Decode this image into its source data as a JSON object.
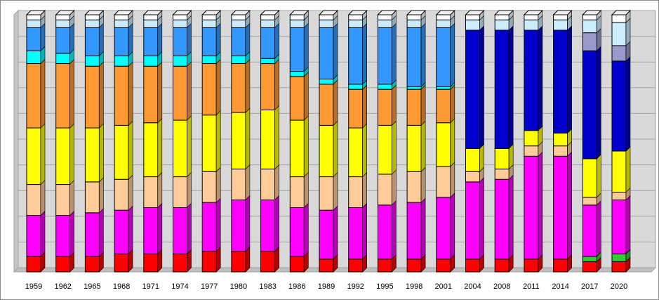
{
  "canvas": {
    "background": "#FFFFFF",
    "border_color": "#8C8C8C",
    "wall_color": "#D9D9D9",
    "side_wall_color": "#C6C6C6",
    "floor_color": "#BFBFBF",
    "gridline_color": "#A3A3A3",
    "bar_outline_color": "#000000",
    "label_color": "#000000"
  },
  "chart_data": {
    "type": "bar",
    "subtype": "stacked-percent-3d",
    "title": "",
    "xlabel": "",
    "ylabel": "",
    "legend": "none",
    "grid": true,
    "ylim": [
      0,
      100
    ],
    "categories": [
      "1959",
      "1962",
      "1965",
      "1968",
      "1971",
      "1974",
      "1977",
      "1980",
      "1983",
      "1986",
      "1989",
      "1992",
      "1995",
      "1998",
      "2001",
      "2004",
      "2008",
      "2011",
      "2014",
      "2017",
      "2020"
    ],
    "series": [
      {
        "name": "segment-red",
        "color": "#FF0000",
        "values": [
          6,
          6,
          6,
          7,
          7,
          7,
          8,
          8,
          8,
          6,
          5,
          5,
          5,
          5,
          5,
          5,
          5,
          5,
          5,
          4,
          4
        ]
      },
      {
        "name": "segment-green",
        "color": "#33CC33",
        "values": [
          0,
          0,
          0,
          0,
          0,
          0,
          0,
          0,
          0,
          0,
          0,
          0,
          0,
          0,
          0,
          0,
          0,
          0,
          0,
          2,
          3
        ]
      },
      {
        "name": "segment-magenta",
        "color": "#FF00FF",
        "values": [
          16,
          16,
          17,
          17,
          18,
          18,
          19,
          20,
          20,
          19,
          19,
          20,
          21,
          22,
          24,
          30,
          31,
          40,
          40,
          20,
          21
        ]
      },
      {
        "name": "segment-peach",
        "color": "#FFCC99",
        "values": [
          12,
          12,
          12,
          12,
          12,
          12,
          12,
          12,
          12,
          12,
          13,
          12,
          12,
          12,
          12,
          4,
          4,
          4,
          4,
          3,
          3
        ]
      },
      {
        "name": "segment-yellow",
        "color": "#FFFF00",
        "values": [
          22,
          22,
          21,
          21,
          21,
          22,
          22,
          22,
          23,
          22,
          20,
          19,
          19,
          18,
          17,
          9,
          8,
          6,
          5,
          15,
          16
        ]
      },
      {
        "name": "segment-orange",
        "color": "#FF9933",
        "values": [
          25,
          25,
          24,
          23,
          22,
          21,
          20,
          19,
          18,
          17,
          16,
          15,
          14,
          14,
          13,
          0,
          0,
          0,
          0,
          0,
          0
        ]
      },
      {
        "name": "segment-navy",
        "color": "#0000CC",
        "values": [
          0,
          0,
          0,
          0,
          0,
          0,
          0,
          0,
          0,
          0,
          0,
          0,
          0,
          0,
          0,
          46,
          46,
          39,
          40,
          42,
          35
        ]
      },
      {
        "name": "segment-cyan",
        "color": "#00FFFF",
        "values": [
          5,
          4,
          4,
          4,
          4,
          4,
          3,
          3,
          2,
          2,
          2,
          2,
          2,
          1,
          1,
          0,
          0,
          0,
          0,
          0,
          0
        ]
      },
      {
        "name": "segment-blue",
        "color": "#3399FF",
        "values": [
          9,
          10,
          11,
          11,
          11,
          11,
          11,
          11,
          12,
          17,
          20,
          22,
          22,
          23,
          23,
          0,
          0,
          0,
          0,
          0,
          0
        ]
      },
      {
        "name": "segment-lilac",
        "color": "#9999CC",
        "values": [
          0,
          0,
          0,
          0,
          0,
          0,
          0,
          0,
          0,
          0,
          0,
          0,
          0,
          0,
          0,
          0,
          0,
          0,
          0,
          7,
          6
        ]
      },
      {
        "name": "segment-pale-blue",
        "color": "#CCECFF",
        "values": [
          3,
          3,
          3,
          3,
          3,
          3,
          3,
          3,
          3,
          3,
          3,
          3,
          3,
          3,
          3,
          4,
          4,
          4,
          4,
          5,
          9
        ]
      },
      {
        "name": "segment-white",
        "color": "#FFFFFF",
        "values": [
          2,
          2,
          2,
          2,
          2,
          2,
          2,
          2,
          2,
          2,
          2,
          2,
          2,
          2,
          2,
          2,
          2,
          2,
          2,
          2,
          3
        ]
      }
    ]
  }
}
